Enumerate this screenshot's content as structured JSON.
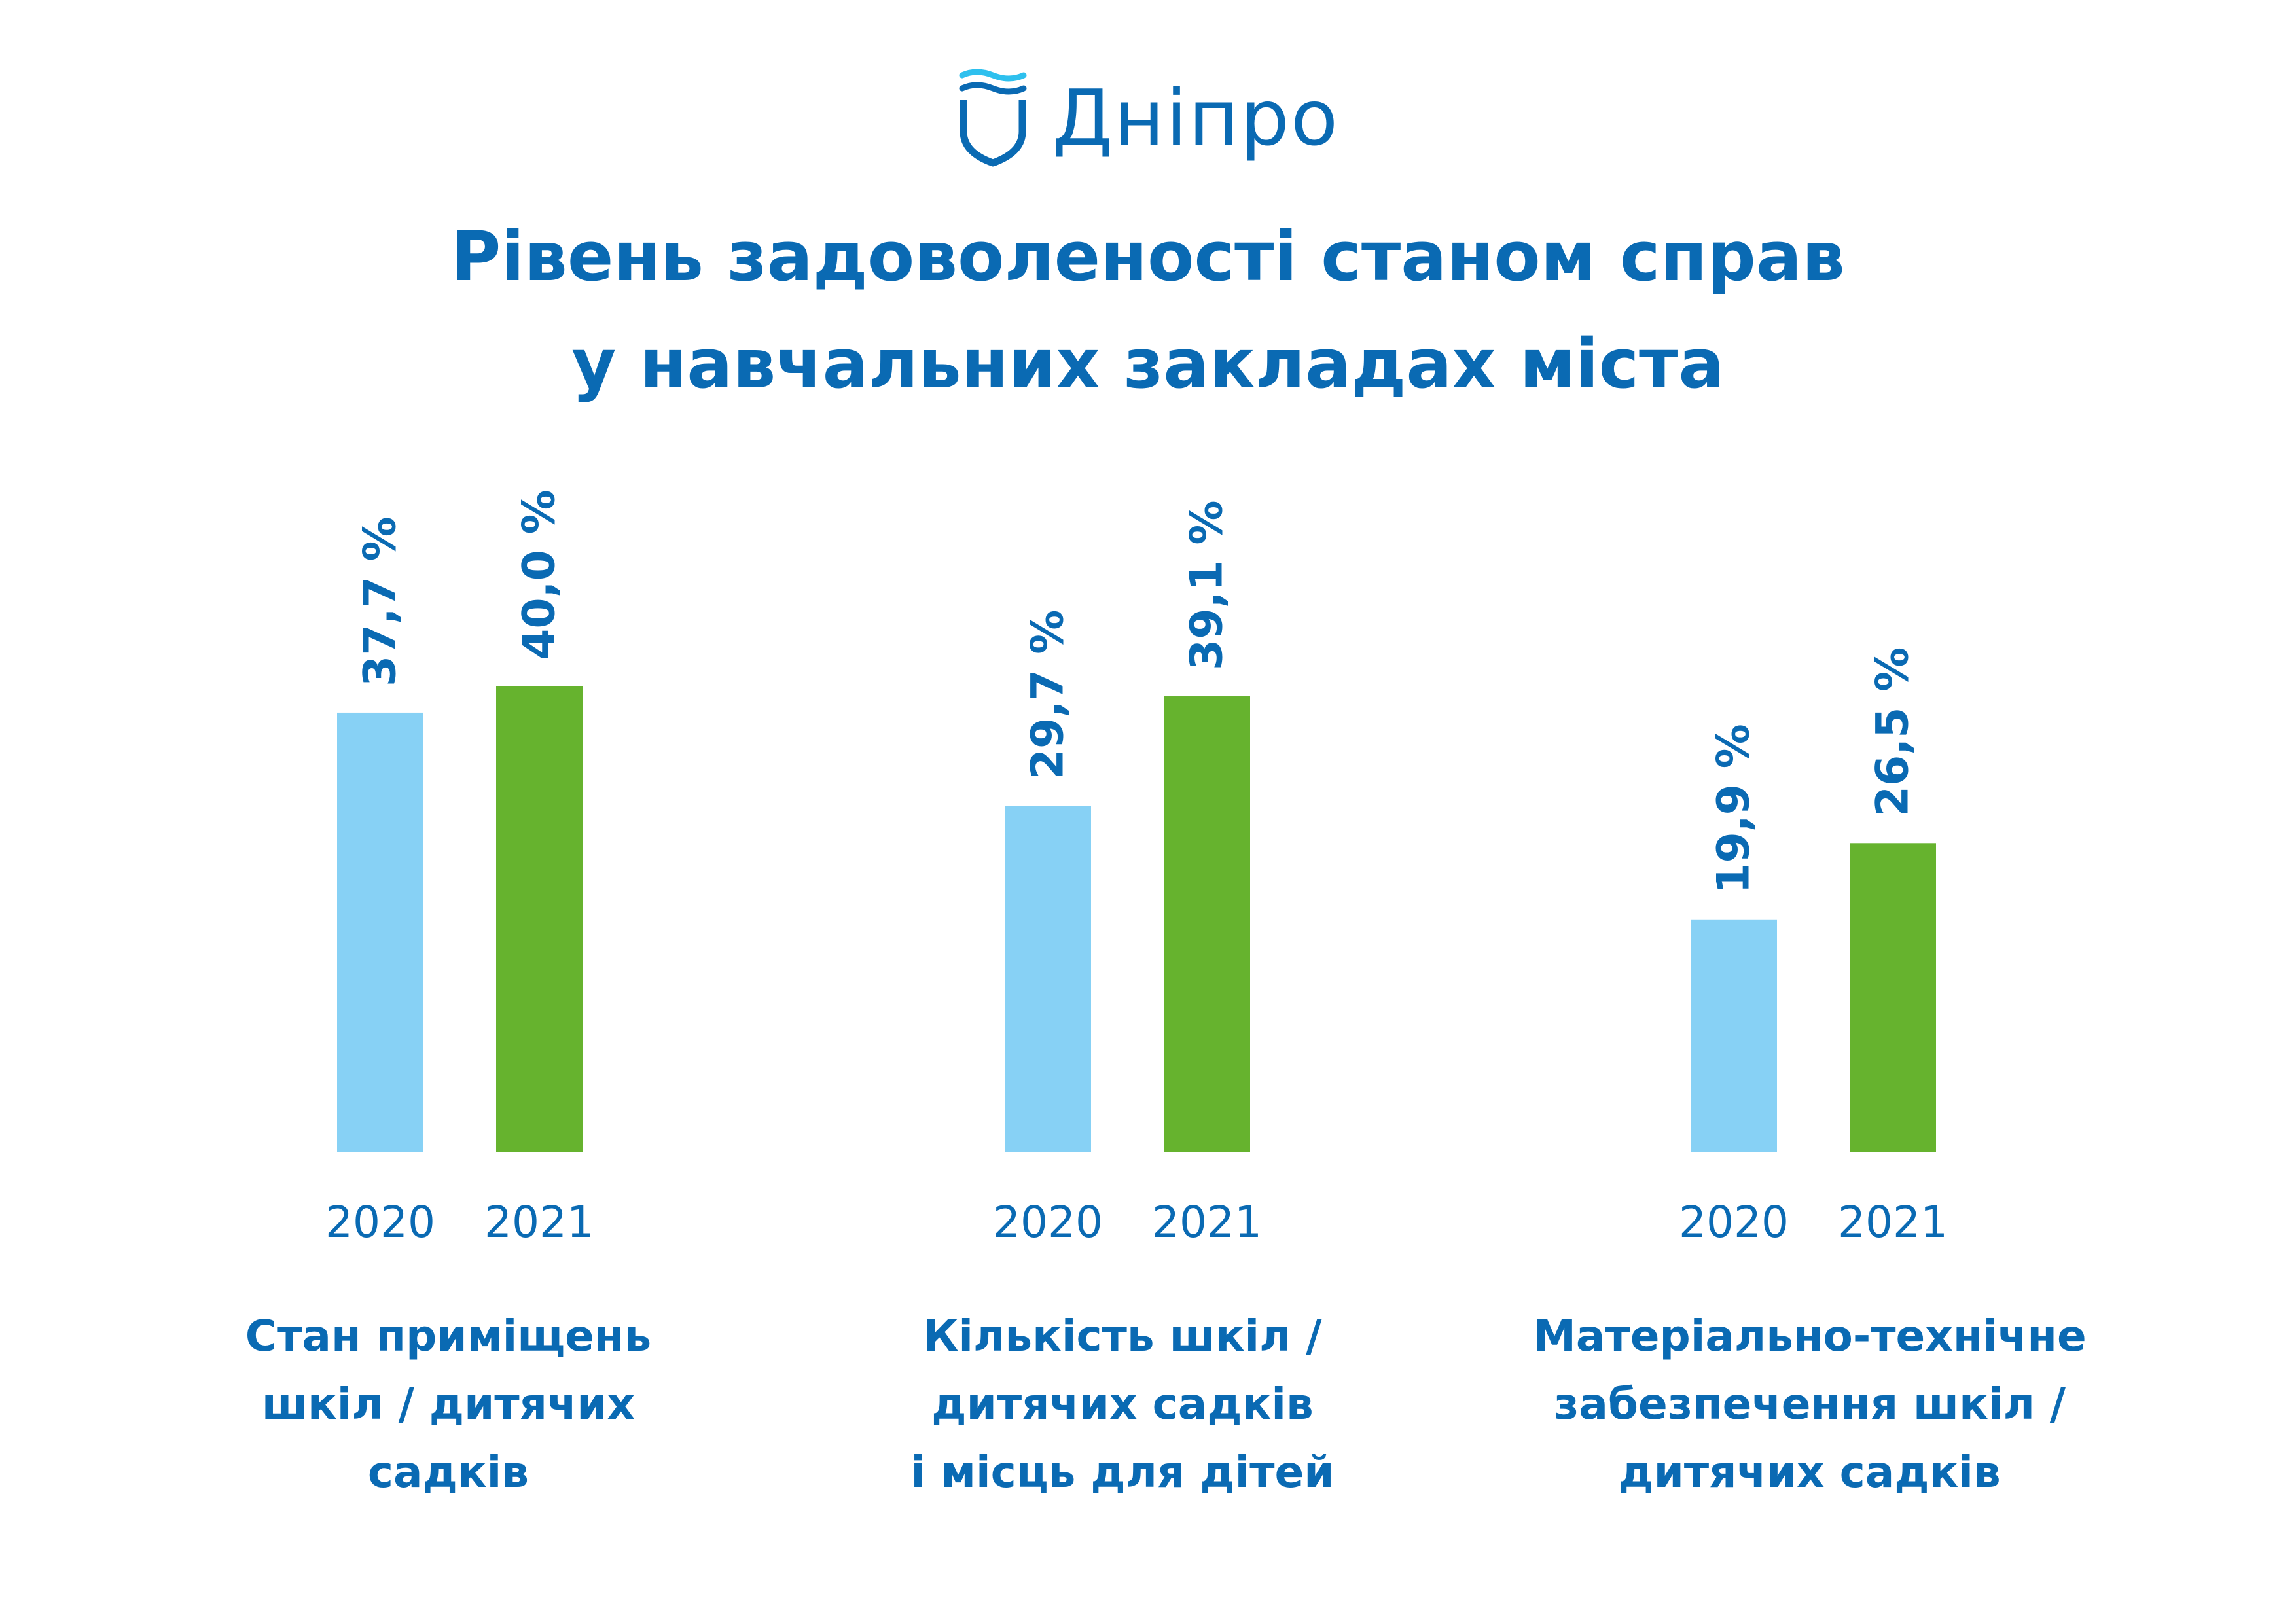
{
  "brand": {
    "name": "Дніпро",
    "colors": {
      "primary": "#0a6ab3",
      "wave": "#2ec0ee"
    },
    "icon": "shield-wave-logo"
  },
  "title": {
    "line1": "Рівень задоволеності станом справ",
    "line2": "у навчальних закладах міста"
  },
  "chart_data": {
    "type": "bar",
    "title": "Рівень задоволеності станом справ у навчальних закладах міста",
    "unit": "%",
    "grid": false,
    "legend": "none",
    "groups": [
      {
        "caption": [
          "Стан приміщень",
          "шкіл / дитячих",
          "садків"
        ],
        "bars": [
          {
            "year": "2020",
            "value": 37.7,
            "label": "37,7 %"
          },
          {
            "year": "2021",
            "value": 40.0,
            "label": "40,0 %"
          }
        ]
      },
      {
        "caption": [
          "Кількість шкіл /",
          "дитячих садків",
          "і місць для дітей"
        ],
        "bars": [
          {
            "year": "2020",
            "value": 29.7,
            "label": "29,7 %"
          },
          {
            "year": "2021",
            "value": 39.1,
            "label": "39,1 %"
          }
        ]
      },
      {
        "caption": [
          "Матеріально-технічне",
          "забезпечення шкіл /",
          "дитячих садків"
        ],
        "bars": [
          {
            "year": "2020",
            "value": 19.9,
            "label": "19,9 %"
          },
          {
            "year": "2021",
            "value": 26.5,
            "label": "26,5 %"
          }
        ]
      }
    ],
    "series_colors": {
      "2020": "#87d1f5",
      "2021": "#66b32e"
    }
  }
}
